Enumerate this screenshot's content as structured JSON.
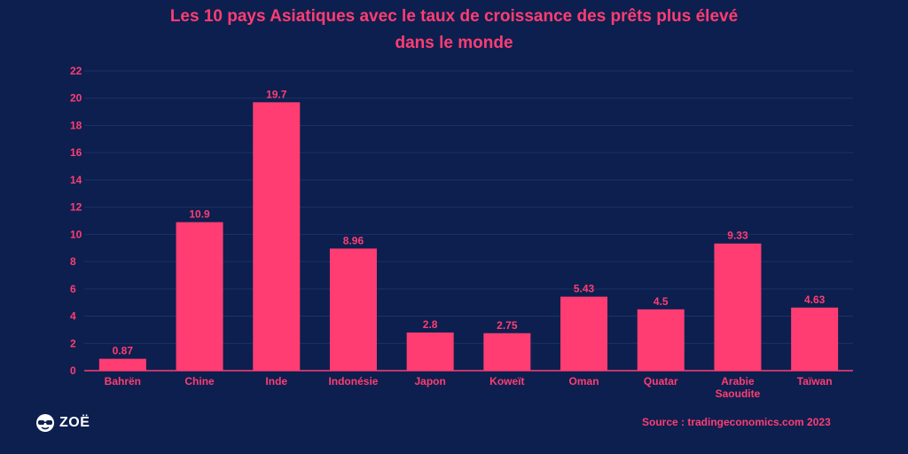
{
  "colors": {
    "background": "#0d1f4f",
    "accent": "#ff3d72",
    "grid": "#1c3266",
    "white": "#ffffff"
  },
  "logo": {
    "text": "ZOË",
    "icon": "glasses-face-icon"
  },
  "source": "Source : tradingeconomics.com 2023",
  "chart_data": {
    "type": "bar",
    "title_lines": [
      "Les 10 pays Asiatiques avec le taux de croissance des prêts plus élevé",
      "dans le monde"
    ],
    "categories": [
      [
        "Bahrën"
      ],
      [
        "Chine"
      ],
      [
        "Inde"
      ],
      [
        "Indonésie"
      ],
      [
        "Japon"
      ],
      [
        "Koweït"
      ],
      [
        "Oman"
      ],
      [
        "Quatar"
      ],
      [
        "Arabie",
        "Saoudite"
      ],
      [
        "Taïwan"
      ]
    ],
    "values": [
      0.87,
      10.9,
      19.7,
      8.96,
      2.8,
      2.75,
      5.43,
      4.5,
      9.33,
      4.63
    ],
    "value_labels": [
      "0.87",
      "10.9",
      "19.7",
      "8.96",
      "2.8",
      "2.75",
      "5.43",
      "4.5",
      "9.33",
      "4.63"
    ],
    "yticks": [
      0,
      2,
      4,
      6,
      8,
      10,
      12,
      14,
      16,
      18,
      20,
      22
    ],
    "ylim": [
      0,
      22
    ],
    "grid": true,
    "legend": "none"
  }
}
